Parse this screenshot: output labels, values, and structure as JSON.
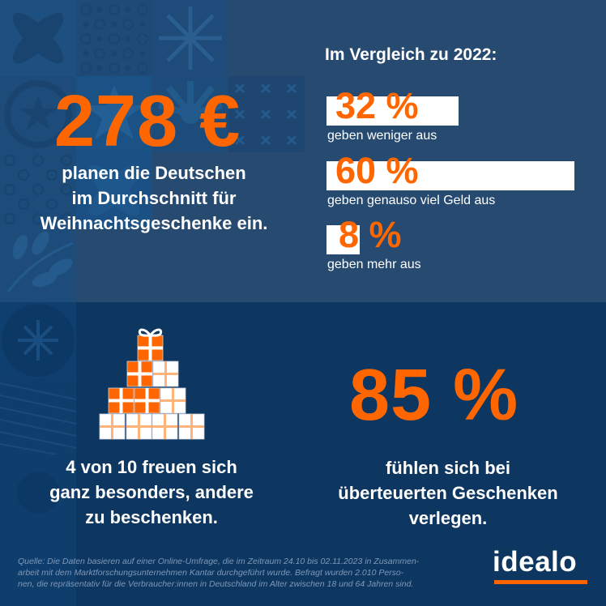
{
  "headline": {
    "amount": "278 €",
    "text_lines": [
      "planen die Deutschen",
      "im Durchschnitt für",
      "Weihnachtsgeschenke ein."
    ]
  },
  "comparison": {
    "title": "Im Vergleich zu 2022:",
    "items": [
      {
        "value": "32 %",
        "percent": 32,
        "label": "geben weniger aus"
      },
      {
        "value": "60 %",
        "percent": 60,
        "label": "geben genauso viel Geld aus"
      },
      {
        "value": "8 %",
        "percent": 8,
        "label": "geben mehr aus"
      }
    ]
  },
  "gifts": {
    "total": 10,
    "highlighted": 4,
    "text_lines": [
      "4 von 10 freuen sich",
      "ganz besonders, andere",
      "zu beschenken."
    ]
  },
  "stat85": {
    "value": "85 %",
    "text_lines": [
      "fühlen sich bei",
      "überteuerten Geschenken",
      "verlegen."
    ]
  },
  "source": {
    "lines": [
      "Quelle: Die Daten basieren auf einer Online-Umfrage, die im Zeitraum 24.10 bis 02.11.2023 in Zusammen-",
      "arbeit mit dem Marktforschungsunternehmen Kantar durchgeführt wurde. Befragt wurden 2.010 Perso-",
      "nen, die repräsentativ für die Verbraucher:innen in Deutschland im Alter zwischen 18 und 64 Jahren sind."
    ]
  },
  "logo": {
    "text": "idealo"
  },
  "colors": {
    "accent": "#ff6600",
    "top_bg": "#264a70",
    "bottom_bg": "#0d3660",
    "text": "#ffffff"
  }
}
